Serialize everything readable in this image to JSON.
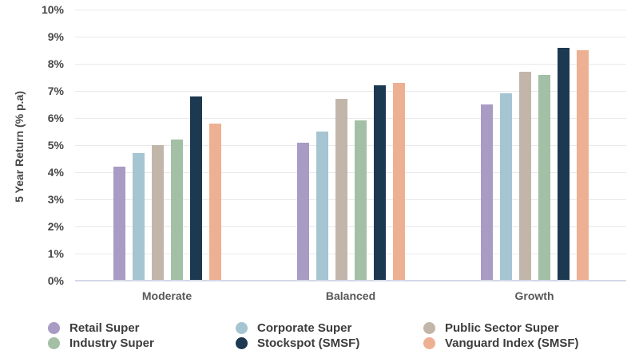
{
  "chart_data": {
    "type": "bar",
    "title": "",
    "categories": [
      "Moderate",
      "Balanced",
      "Growth"
    ],
    "series": [
      {
        "name": "Retail Super",
        "color": "#a89bc4",
        "values": [
          4.2,
          5.1,
          6.5
        ]
      },
      {
        "name": "Corporate Super",
        "color": "#a5c5d2",
        "values": [
          4.7,
          5.5,
          6.9
        ]
      },
      {
        "name": "Public Sector Super",
        "color": "#c2b6ab",
        "values": [
          5.0,
          6.7,
          7.7
        ]
      },
      {
        "name": "Industry Super",
        "color": "#a3bfa5",
        "values": [
          5.2,
          5.9,
          7.6
        ]
      },
      {
        "name": "Stockspot (SMSF)",
        "color": "#1d3951",
        "values": [
          6.8,
          7.2,
          8.6
        ]
      },
      {
        "name": "Vanguard Index (SMSF)",
        "color": "#eeb093",
        "values": [
          5.8,
          7.3,
          8.5
        ]
      }
    ],
    "xlabel": "",
    "ylabel": "5 Year Return (% p.a)",
    "ylim": [
      0,
      10
    ],
    "ytick_labels": [
      "0%",
      "1%",
      "2%",
      "3%",
      "4%",
      "5%",
      "6%",
      "7%",
      "8%",
      "9%",
      "10%"
    ],
    "grid": true,
    "legend_position": "bottom",
    "legend_columns": [
      [
        0,
        3
      ],
      [
        1,
        4
      ],
      [
        2,
        5
      ]
    ]
  },
  "style": {
    "gridline_color": "#e9e9eb",
    "axis_line_color": "#d3d8e7",
    "tick_label_color": "#474747",
    "category_label_color": "#57585a",
    "legend_label_color": "#3c3c3c",
    "background_color": "#ffffff"
  }
}
